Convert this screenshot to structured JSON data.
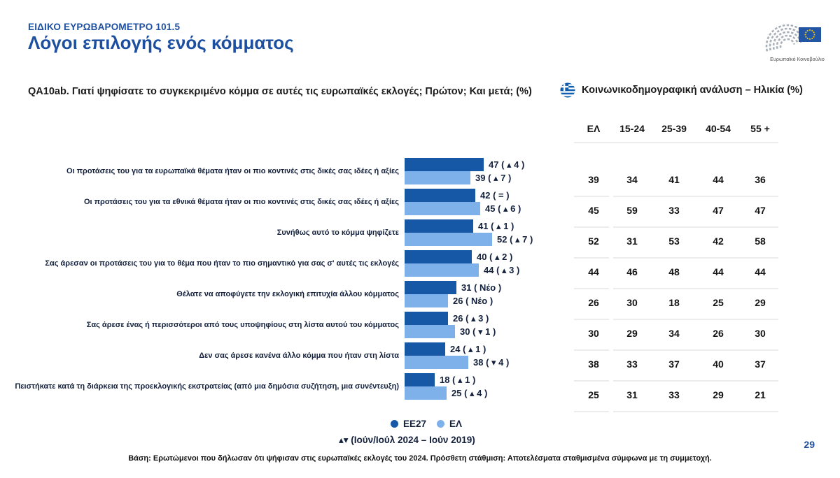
{
  "header": {
    "kicker": "ΕΙΔΙΚΟ ΕΥΡΩΒΑΡΟΜΕΤΡΟ 101.5",
    "title": "Λόγοι επιλογής ενός κόμματος",
    "logo_caption": "Ευρωπαϊκό Κοινοβούλιο"
  },
  "question": "QA10ab. Γιατί ψηφίσατε το συγκεκριμένο κόμμα σε αυτές τις ευρωπαϊκές εκλογές; Πρώτον; Και μετά; (%)",
  "demographic": {
    "title": "Κοινωνικοδημογραφική ανάλυση – Ηλικία (%)",
    "columns": [
      "ΕΛ",
      "15-24",
      "25-39",
      "40-54",
      "55 +"
    ]
  },
  "chart_data": {
    "type": "bar",
    "orientation": "horizontal",
    "title": "QA10ab. Γιατί ψηφίσατε το συγκεκριμένο κόμμα σε αυτές τις ευρωπαϊκές εκλογές; Πρώτον; Και μετά; (%)",
    "xlim": [
      0,
      60
    ],
    "grid": false,
    "legend_position": "bottom",
    "categories": [
      "Οι προτάσεις του για τα ευρωπαϊκά θέματα ήταν οι πιο κοντινές στις δικές σας ιδέες ή αξίες",
      "Οι προτάσεις του για τα εθνικά θέματα ήταν οι πιο κοντινές στις δικές σας ιδέες ή αξίες",
      "Συνήθως αυτό το κόμμα ψηφίζετε",
      "Σας άρεσαν οι προτάσεις του για το θέμα που ήταν το πιο σημαντικό για σας σ' αυτές τις εκλογές",
      "Θέλατε να αποφύγετε την εκλογική επιτυχία άλλου κόμματος",
      "Σας άρεσε ένας ή περισσότεροι από τους υποψηφίους στη λίστα αυτού του κόμματος",
      "Δεν σας άρεσε κανένα άλλο κόμμα που ήταν στη λίστα",
      "Πειστήκατε κατά τη διάρκεια της προεκλογικής εκστρατείας (από μια δημόσια συζήτηση, μια συνέντευξη)"
    ],
    "series": [
      {
        "name": "EE27",
        "values": [
          47,
          42,
          41,
          40,
          31,
          26,
          24,
          18
        ],
        "changes": [
          "▴ 4",
          "=",
          "▴ 1",
          "▴ 2",
          "Νέο",
          "▴ 3",
          "▴ 1",
          "▴ 1"
        ]
      },
      {
        "name": "ΕΛ",
        "values": [
          39,
          45,
          52,
          44,
          26,
          30,
          38,
          25
        ],
        "changes": [
          "▴ 7",
          "▴ 6",
          "▴ 7",
          "▴ 3",
          "Νέο",
          "▾ 1",
          "▾ 4",
          "▴ 4"
        ]
      }
    ],
    "age_table": {
      "columns": [
        "ΕΛ",
        "15-24",
        "25-39",
        "40-54",
        "55 +"
      ],
      "rows": [
        [
          39,
          34,
          41,
          44,
          36
        ],
        [
          45,
          59,
          33,
          47,
          47
        ],
        [
          52,
          31,
          53,
          42,
          58
        ],
        [
          44,
          46,
          48,
          44,
          44
        ],
        [
          26,
          30,
          18,
          25,
          29
        ],
        [
          30,
          29,
          34,
          26,
          30
        ],
        [
          38,
          33,
          37,
          40,
          37
        ],
        [
          25,
          31,
          33,
          29,
          21
        ]
      ]
    }
  },
  "legend": {
    "ee27": "EE27",
    "el": "ΕΛ",
    "note": "▴▾ (Ιούν/Ιούλ 2024 – Ιούν 2019)"
  },
  "footer": {
    "base": "Βάση: Ερωτώμενοι που δήλωσαν ότι ψήφισαν στις ευρωπαϊκές εκλογές του 2024. Πρόσθετη στάθμιση: Αποτελέσματα σταθμισμένα σύμφωνα με τη συμμετοχή.",
    "page": "29"
  },
  "colors": {
    "ee27_bar": "#1657A6",
    "el_bar": "#7EB0EA",
    "title_blue": "#1d4fa1",
    "separator": "#ececec",
    "greek_flag_blue": "#0D5EAF",
    "eu_flag_blue": "#2255A4",
    "eu_star_yellow": "#FFCC00"
  }
}
